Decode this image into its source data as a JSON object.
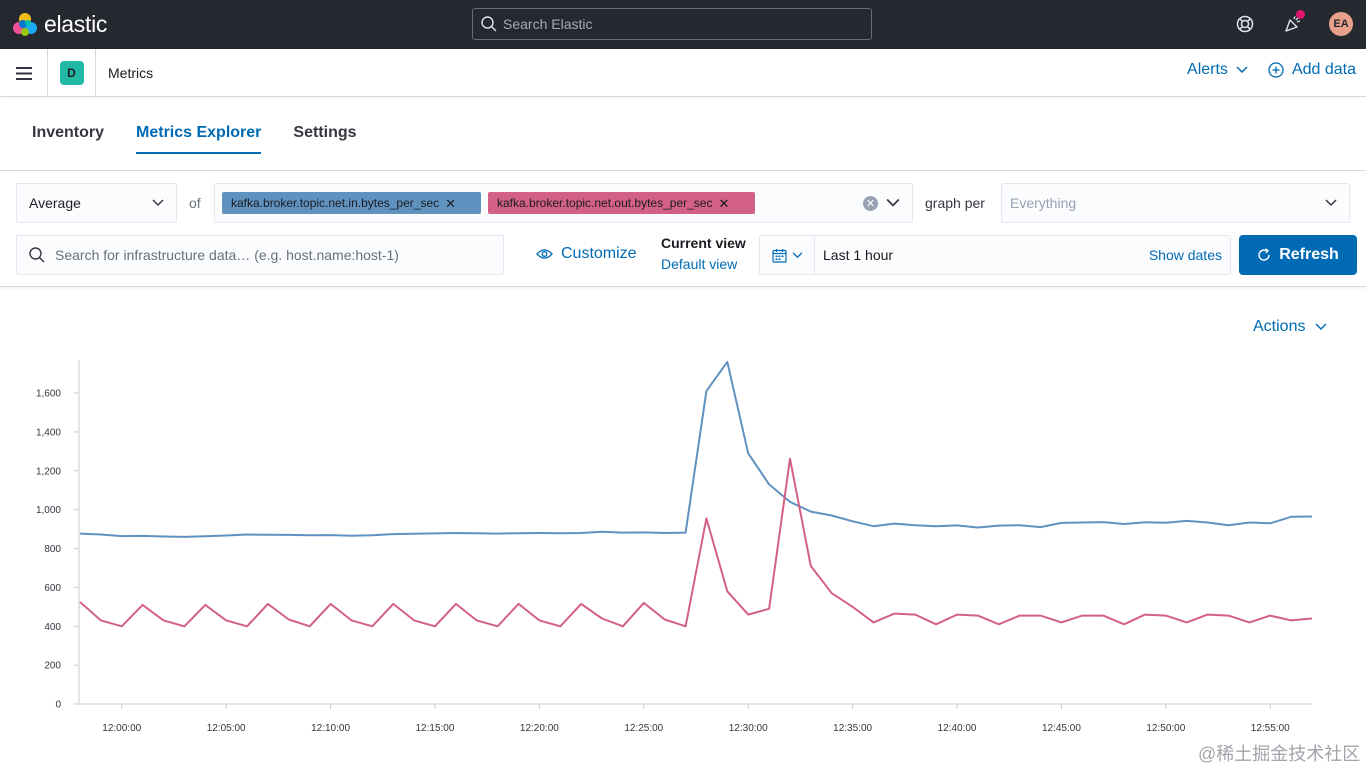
{
  "header": {
    "brand": "elastic",
    "search_placeholder": "Search Elastic",
    "avatar_initials": "EA",
    "colors": {
      "background": "#25282f",
      "notification_dot": "#e0156b"
    }
  },
  "appbar": {
    "space_initial": "D",
    "breadcrumb": "Metrics",
    "alerts_label": "Alerts",
    "add_data_label": "Add data"
  },
  "tabs": [
    {
      "label": "Inventory",
      "active": false
    },
    {
      "label": "Metrics Explorer",
      "active": true
    },
    {
      "label": "Settings",
      "active": false
    }
  ],
  "controls": {
    "aggregation": "Average",
    "of_label": "of",
    "metrics": [
      {
        "label": "kafka.broker.topic.net.in.bytes_per_sec",
        "color": "#6092c0"
      },
      {
        "label": "kafka.broker.topic.net.out.bytes_per_sec",
        "color": "#d36086"
      }
    ],
    "graph_per_label": "graph per",
    "group_by_placeholder": "Everything",
    "kql_placeholder": "Search for infrastructure data… (e.g. host.name:host-1)",
    "customize_label": "Customize",
    "current_view_title": "Current view",
    "current_view_value": "Default view",
    "time_range": "Last 1 hour",
    "show_dates_label": "Show dates",
    "refresh_label": "Refresh"
  },
  "actions_label": "Actions",
  "watermark": "@稀土掘金技术社区",
  "chart_data": {
    "type": "line",
    "x_start": "11:58:00",
    "x_interval": "1m",
    "x_ticks": [
      "12:00:00",
      "12:05:00",
      "12:10:00",
      "12:15:00",
      "12:20:00",
      "12:25:00",
      "12:30:00",
      "12:35:00",
      "12:40:00",
      "12:45:00",
      "12:50:00",
      "12:55:00"
    ],
    "y_ticks": [
      0,
      200,
      400,
      600,
      800,
      1000,
      1200,
      1400,
      1600
    ],
    "y_tick_labels": [
      "0",
      "200",
      "400",
      "600",
      "800",
      "1,000",
      "1,200",
      "1,400",
      "1,600"
    ],
    "ylim": [
      0,
      1770
    ],
    "grid": false,
    "series": [
      {
        "color": "#6092c0",
        "values": [
          877,
          872,
          864,
          865,
          862,
          860,
          863,
          867,
          872,
          871,
          870,
          868,
          869,
          866,
          868,
          874,
          876,
          878,
          880,
          879,
          877,
          879,
          880,
          879,
          880,
          886,
          882,
          883,
          880,
          882,
          1610,
          1760,
          1290,
          1130,
          1040,
          990,
          970,
          940,
          915,
          928,
          920,
          915,
          919,
          908,
          918,
          920,
          910,
          932,
          934,
          936,
          926,
          935,
          933,
          942,
          934,
          920,
          934,
          930,
          963,
          965
        ]
      },
      {
        "color": "#d36086",
        "values": [
          525,
          430,
          400,
          510,
          430,
          400,
          510,
          430,
          400,
          515,
          435,
          400,
          515,
          430,
          400,
          515,
          430,
          400,
          515,
          430,
          400,
          515,
          430,
          400,
          515,
          440,
          400,
          520,
          435,
          400,
          955,
          580,
          460,
          490,
          1262,
          710,
          570,
          500,
          420,
          465,
          460,
          410,
          460,
          455,
          410,
          455,
          455,
          420,
          455,
          455,
          410,
          460,
          455,
          420,
          460,
          455,
          420,
          455,
          430,
          440
        ]
      }
    ]
  }
}
